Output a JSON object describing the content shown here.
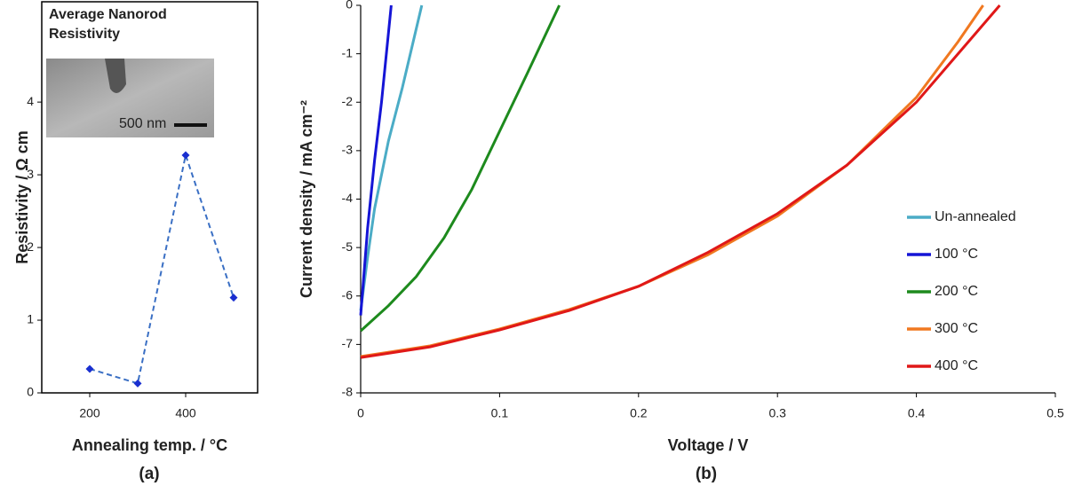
{
  "chart_data": [
    {
      "type": "line",
      "title": "Average Nanorod Resistivity",
      "inset_label": "500 nm",
      "x_label": "Annealing temp. / °C",
      "y_label": "Resistivity / Ω cm",
      "panel_label": "(a)",
      "x": [
        200,
        300,
        400,
        500
      ],
      "values": [
        0.33,
        0.13,
        3.27,
        1.31
      ],
      "color": "#3a6fc4",
      "marker_color": "#1a2fd0",
      "line_style": "dashed",
      "markers": "diamond",
      "xlim": [
        100,
        550
      ],
      "xticks": [
        200,
        400
      ],
      "ylim": [
        0,
        5.38
      ],
      "yticks": [
        0,
        1,
        2,
        3,
        4
      ]
    },
    {
      "type": "line",
      "x_label": "Voltage / V",
      "y_label": "Current density / mA cm⁻²",
      "panel_label": "(b)",
      "legend": "lower right",
      "xlim": [
        0,
        0.5
      ],
      "xticks": [
        0,
        0.1,
        0.2,
        0.3,
        0.4,
        0.5
      ],
      "ylim": [
        -8,
        0
      ],
      "yticks": [
        -8,
        -7,
        -6,
        -5,
        -4,
        -3,
        -2,
        -1,
        0
      ],
      "series": [
        {
          "name": "Un-annealed",
          "color": "#4bacc6",
          "x": [
            0,
            0.005,
            0.01,
            0.02,
            0.03,
            0.044
          ],
          "values": [
            -6.3,
            -5.2,
            -4.2,
            -2.8,
            -1.7,
            0
          ]
        },
        {
          "name": "100 °C",
          "color": "#1515d6",
          "x": [
            0,
            0.005,
            0.01,
            0.015,
            0.022
          ],
          "values": [
            -6.4,
            -4.6,
            -3.2,
            -2.0,
            0
          ]
        },
        {
          "name": "200 °C",
          "color": "#1d8a1d",
          "x": [
            0,
            0.02,
            0.04,
            0.06,
            0.08,
            0.1,
            0.12,
            0.143
          ],
          "values": [
            -6.72,
            -6.2,
            -5.6,
            -4.8,
            -3.8,
            -2.6,
            -1.4,
            0
          ]
        },
        {
          "name": "300 °C",
          "color": "#f07820",
          "x": [
            0,
            0.05,
            0.1,
            0.15,
            0.2,
            0.25,
            0.3,
            0.35,
            0.4,
            0.43,
            0.448
          ],
          "values": [
            -7.25,
            -7.03,
            -6.68,
            -6.28,
            -5.8,
            -5.15,
            -4.35,
            -3.3,
            -1.9,
            -0.75,
            0
          ]
        },
        {
          "name": "400 °C",
          "color": "#e01818",
          "x": [
            0,
            0.05,
            0.1,
            0.15,
            0.2,
            0.25,
            0.3,
            0.35,
            0.4,
            0.43,
            0.46
          ],
          "values": [
            -7.27,
            -7.05,
            -6.7,
            -6.3,
            -5.8,
            -5.1,
            -4.3,
            -3.3,
            -2.0,
            -1.0,
            0
          ]
        }
      ]
    }
  ]
}
